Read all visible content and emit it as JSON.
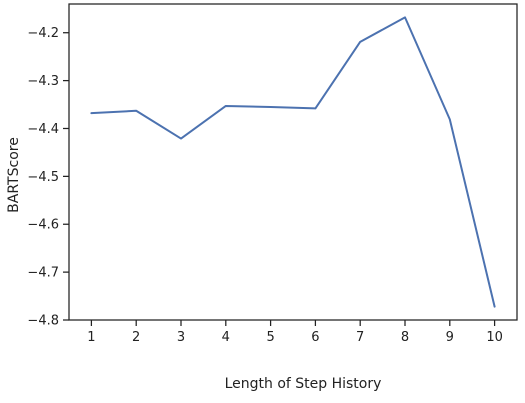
{
  "chart_data": {
    "type": "line",
    "title": "",
    "xlabel": "Length of Step History",
    "ylabel": "BARTScore",
    "x": [
      1,
      2,
      3,
      4,
      5,
      6,
      7,
      8,
      9,
      10
    ],
    "series": [
      {
        "values": [
          -4.368,
          -4.363,
          -4.421,
          -4.353,
          -4.355,
          -4.358,
          -4.219,
          -4.168,
          -4.381,
          -4.772
        ]
      }
    ],
    "xlim": [
      0.5,
      10.5
    ],
    "ylim": [
      -4.8,
      -4.14
    ],
    "x_ticks": [
      "1",
      "2",
      "3",
      "4",
      "5",
      "6",
      "7",
      "8",
      "9",
      "10"
    ],
    "y_ticks": [
      "-4.8",
      "-4.7",
      "-4.6",
      "-4.5",
      "-4.4",
      "-4.3",
      "-4.2"
    ],
    "grid": false,
    "legend": "none",
    "colors": {
      "line": "#4c72b0",
      "axes": "#222222"
    }
  }
}
